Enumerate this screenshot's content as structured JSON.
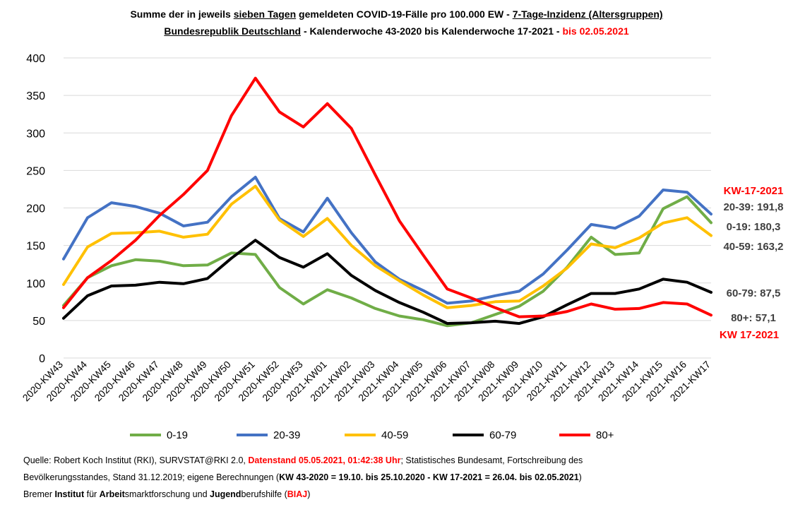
{
  "title": {
    "line1_a": "Summe der in jeweils ",
    "line1_b": "sieben Tagen",
    "line1_c": " gemeldeten COVID-19-Fälle pro 100.000 EW - ",
    "line1_d": "7-Tage-Inzidenz (Altersgruppen)",
    "line2_a": "Bundesrepublik Deutschland",
    "line2_b": " -  Kalenderwoche 43-2020 bis Kalenderwoche 17-2021 - ",
    "line2_c": "bis 02.05.2021"
  },
  "chart_data": {
    "type": "line",
    "title": "",
    "xlabel": "",
    "ylabel": "",
    "ylim": [
      0,
      400
    ],
    "yticks": [
      0,
      50,
      100,
      150,
      200,
      250,
      300,
      350,
      400
    ],
    "grid": true,
    "legend_position": "bottom",
    "categories": [
      "2020-KW43",
      "2020-KW44",
      "2020-KW45",
      "2020-KW46",
      "2020-KW47",
      "2020-KW48",
      "2020-KW49",
      "2020-KW50",
      "2020-KW51",
      "2020-KW52",
      "2020-KW53",
      "2021-KW01",
      "2021-KW02",
      "2021-KW03",
      "2021-KW04",
      "2021-KW05",
      "2021-KW06",
      "2021-KW07",
      "2021-KW08",
      "2021-KW09",
      "2021-KW10",
      "2021-KW11",
      "2021-KW12",
      "2021-KW13",
      "2021-KW14",
      "2021-KW15",
      "2021-KW16",
      "2021-KW17"
    ],
    "series": [
      {
        "name": "0-19",
        "color": "#70ad47",
        "values": [
          70,
          107,
          123,
          131,
          129,
          123,
          124,
          140,
          138,
          94,
          72,
          91,
          80,
          66,
          56,
          51,
          43,
          47,
          58,
          69,
          89,
          121,
          161,
          138,
          140,
          199,
          215,
          180.3
        ]
      },
      {
        "name": "20-39",
        "color": "#4472c4",
        "values": [
          132,
          187,
          207,
          202,
          193,
          176,
          181,
          215,
          241,
          186,
          168,
          213,
          167,
          128,
          105,
          90,
          73,
          76,
          83,
          89,
          112,
          144,
          178,
          173,
          189,
          224,
          221,
          191.8
        ]
      },
      {
        "name": "40-59",
        "color": "#ffc000",
        "values": [
          98,
          148,
          166,
          167,
          169,
          161,
          165,
          205,
          229,
          184,
          162,
          186,
          150,
          123,
          103,
          84,
          67,
          70,
          75,
          76,
          96,
          120,
          152,
          147,
          160,
          180,
          187,
          163.2
        ]
      },
      {
        "name": "60-79",
        "color": "#000000",
        "values": [
          53,
          83,
          96,
          97,
          101,
          99,
          106,
          133,
          157,
          134,
          121,
          139,
          110,
          90,
          74,
          61,
          46,
          47,
          49,
          46,
          55,
          71,
          86,
          86,
          92,
          105,
          101,
          87.5
        ]
      },
      {
        "name": "80+",
        "color": "#ff0000",
        "values": [
          67,
          107,
          130,
          157,
          190,
          218,
          250,
          323,
          373,
          328,
          308,
          339,
          306,
          244,
          183,
          137,
          92,
          80,
          67,
          55,
          56,
          62,
          72,
          65,
          66,
          74,
          72,
          57.1
        ]
      }
    ]
  },
  "annotations": {
    "top_label": "KW-17-2021",
    "bottom_label": "KW 17-2021",
    "items": [
      {
        "text": "20-39: 191,8"
      },
      {
        "text": "0-19: 180,3"
      },
      {
        "text": "40-59: 163,2"
      },
      {
        "text": "60-79: 87,5"
      },
      {
        "text": "80+: 57,1"
      }
    ]
  },
  "footer": {
    "l1_a": "Quelle: Robert Koch Institut (RKI), SURVSTAT@RKI 2.0, ",
    "l1_b": "Datenstand 05.05.2021, 01:42:38 Uhr",
    "l1_c": "; Statistisches Bundesamt, Fortschreibung des",
    "l2_a": "Bevölkerungsstandes, Stand 31.12.2019; eigene Berechnungen (",
    "l2_b": "KW 43-2020 = 19.10. bis 25.10.2020 - KW 17-2021 = 26.04. bis 02.05.2021",
    "l2_c": ")",
    "l3_a": "Bremer ",
    "l3_b": "Institut",
    "l3_c": " für ",
    "l3_d": "Arbeit",
    "l3_e": "smarktforschung und ",
    "l3_f": "Jugend",
    "l3_g": "berufshilfe (",
    "l3_h": "BIAJ",
    "l3_i": ")"
  }
}
